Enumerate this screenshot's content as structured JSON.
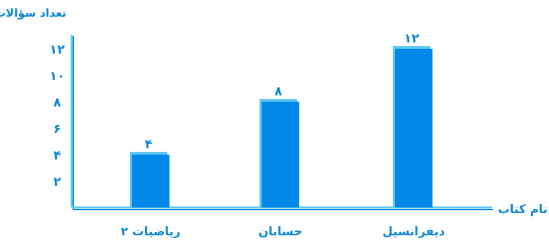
{
  "chart_data": {
    "type": "bar",
    "ylabel": "تعداد سؤالات",
    "xlabel": "نام کتاب",
    "categories": [
      "ریاضیات ۲",
      "حسابان",
      "دیفرانسیل"
    ],
    "values": [
      4,
      8,
      12
    ],
    "value_labels": [
      "۴",
      "۸",
      "۱۲"
    ],
    "yticks": [
      2,
      4,
      6,
      8,
      10,
      12
    ],
    "ytick_labels": [
      "۲",
      "۴",
      "۶",
      "۸",
      "۱۰",
      "۱۲"
    ],
    "ylim": [
      0,
      12
    ],
    "grid": false,
    "colors": {
      "bar": "#0388e8",
      "bar_shadow": "#5ec8f0",
      "axis": "#5ec8f0",
      "axis_shadow": "#0388e8",
      "text": "#0a85d8"
    }
  }
}
